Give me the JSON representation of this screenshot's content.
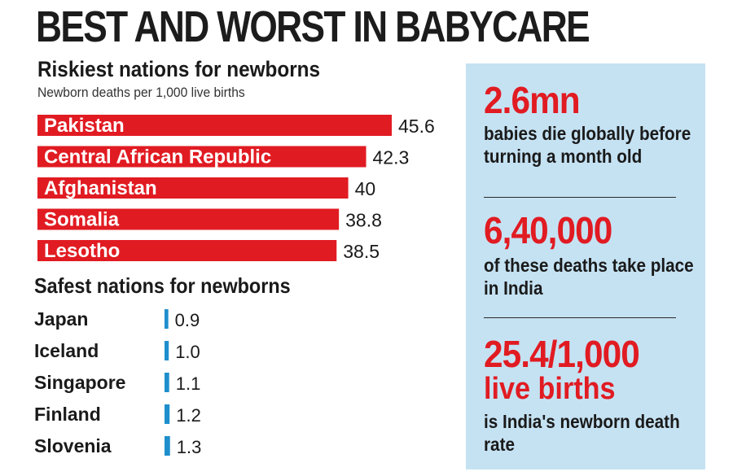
{
  "headline": "BEST AND WORST IN BABYCARE",
  "chart_data": [
    {
      "type": "bar",
      "orientation": "horizontal",
      "title": "Riskiest nations for newborns",
      "subtitle": "Newborn deaths per 1,000 live births",
      "categories": [
        "Pakistan",
        "Central African Republic",
        "Afghanistan",
        "Somalia",
        "Lesotho"
      ],
      "values": [
        45.6,
        42.3,
        40,
        38.8,
        38.5
      ],
      "value_labels": [
        "45.6",
        "42.3",
        "40",
        "38.8",
        "38.5"
      ],
      "labels_inside_bars": true,
      "color": "#e11b22",
      "grid": false,
      "legend": "none"
    },
    {
      "type": "bar",
      "orientation": "horizontal",
      "title": "Safest nations for newborns",
      "categories": [
        "Japan",
        "Iceland",
        "Singapore",
        "Finland",
        "Slovenia"
      ],
      "values": [
        0.9,
        1.0,
        1.1,
        1.2,
        1.3
      ],
      "value_labels": [
        "0.9",
        "1.0",
        "1.1",
        "1.2",
        "1.3"
      ],
      "color": "#1e8fcc",
      "grid": false,
      "legend": "none"
    }
  ],
  "panel": {
    "background": "#c5e2f3",
    "stats": [
      {
        "figure": "2.6mn",
        "text": "babies die globally before turning a month old"
      },
      {
        "figure": "6,40,000",
        "text": "of these deaths take place in India"
      },
      {
        "figure": "25.4/1,000",
        "figure2": "live births",
        "text": "is India's newborn death rate"
      }
    ]
  }
}
